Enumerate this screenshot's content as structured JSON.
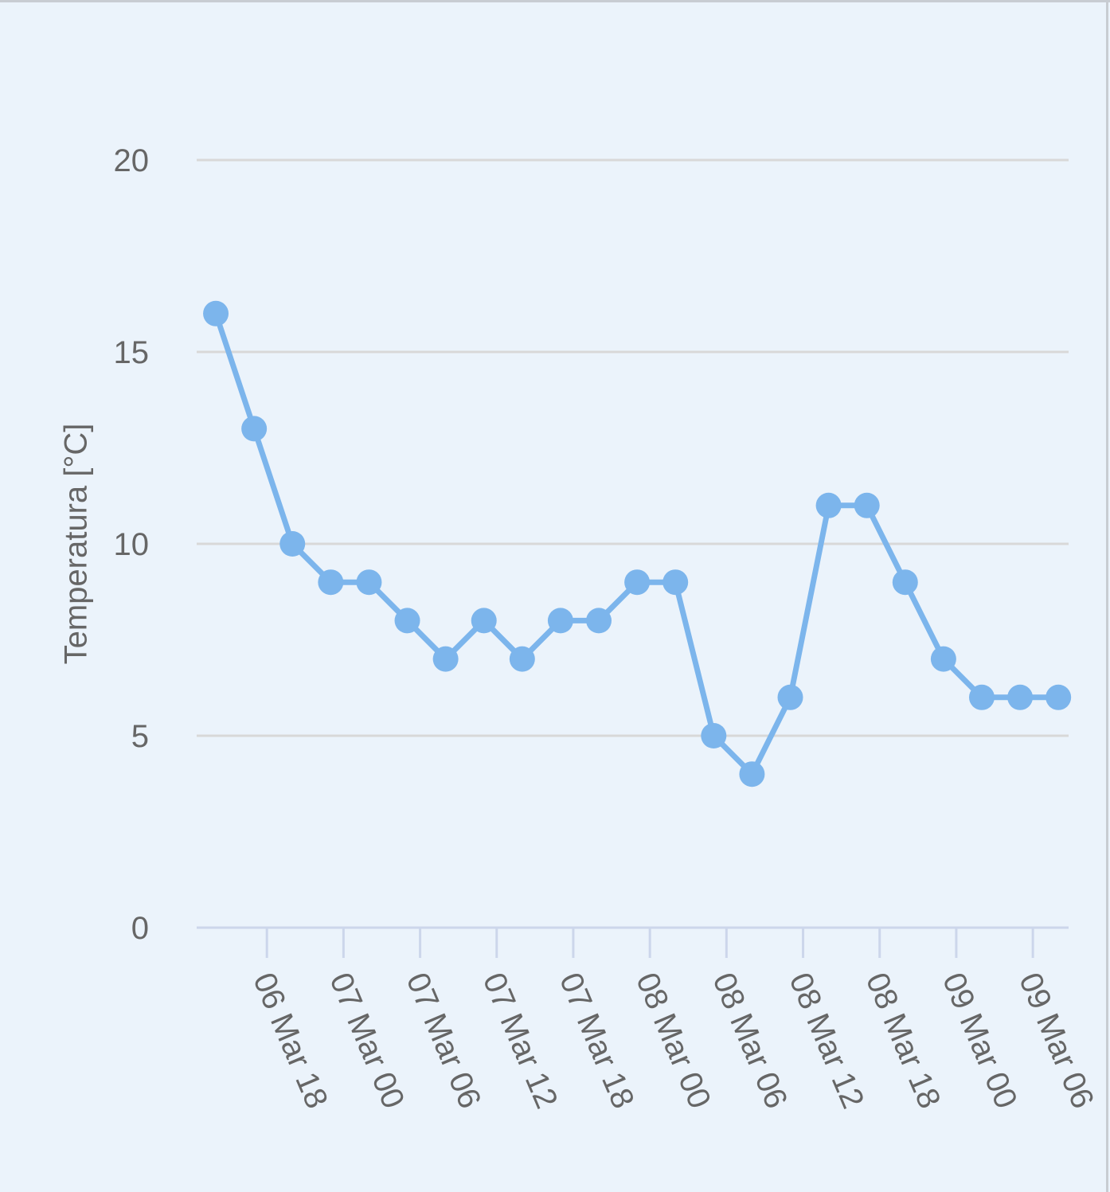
{
  "chart_data": {
    "type": "line",
    "y_label": "Temperatura [°C]",
    "x": [
      "06 Mar 14",
      "06 Mar 17",
      "06 Mar 20",
      "06 Mar 23",
      "07 Mar 02",
      "07 Mar 05",
      "07 Mar 08",
      "07 Mar 11",
      "07 Mar 14",
      "07 Mar 17",
      "07 Mar 20",
      "07 Mar 23",
      "08 Mar 02",
      "08 Mar 05",
      "08 Mar 08",
      "08 Mar 11",
      "08 Mar 14",
      "08 Mar 17",
      "08 Mar 20",
      "08 Mar 23",
      "09 Mar 02",
      "09 Mar 05",
      "09 Mar 08"
    ],
    "series": [
      {
        "color": "#7cb5ec",
        "values": [
          16,
          13,
          10,
          9,
          9,
          8,
          7,
          8,
          7,
          8,
          8,
          9,
          9,
          5,
          4,
          6,
          11,
          11,
          9,
          7,
          6,
          6,
          6
        ]
      }
    ],
    "xticks": [
      "06 Mar 18",
      "07 Mar 00",
      "07 Mar 06",
      "07 Mar 12",
      "07 Mar 18",
      "08 Mar 00",
      "08 Mar 06",
      "08 Mar 12",
      "08 Mar 18",
      "09 Mar 00",
      "09 Mar 06"
    ],
    "ylim": [
      0,
      20
    ],
    "yticks": [
      0,
      5,
      10,
      15,
      20
    ],
    "grid": true
  }
}
